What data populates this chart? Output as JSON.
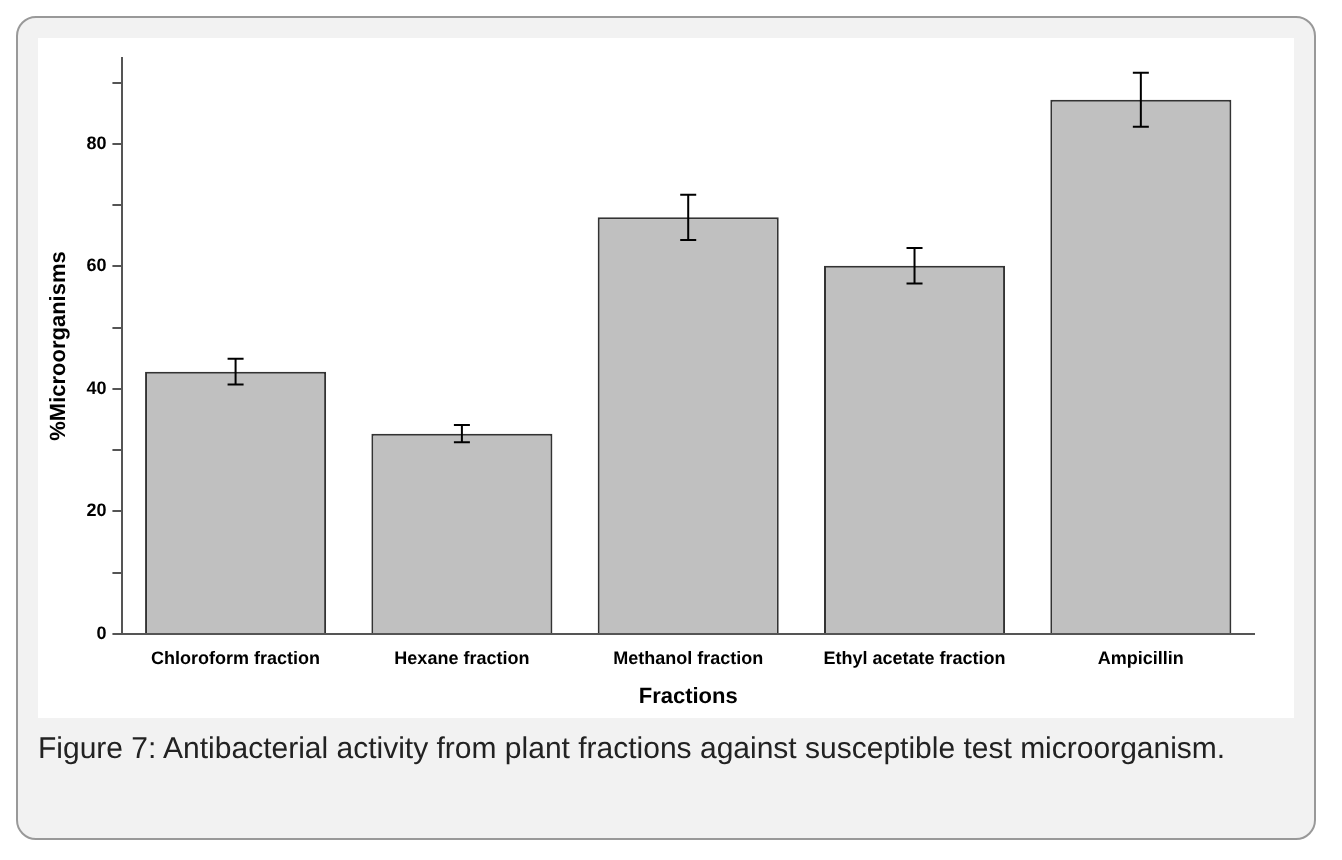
{
  "chart_data": {
    "type": "bar",
    "xlabel": "Fractions",
    "ylabel": "%Microorganisms",
    "categories": [
      "Chloroform fraction",
      "Hexane fraction",
      "Methanol fraction",
      "Ethyl acetate fraction",
      "Ampicillin"
    ],
    "values": [
      42.8,
      32.7,
      68.0,
      60.1,
      87.2
    ],
    "errors": [
      2.1,
      1.4,
      3.7,
      2.9,
      4.4
    ],
    "color": "#c0c0c0",
    "ylim": [
      0,
      94
    ],
    "yticks": [
      0,
      {
        "value": 10,
        "label": null
      },
      20,
      {
        "value": 30,
        "label": null
      },
      40,
      {
        "value": 50,
        "label": null
      },
      60,
      {
        "value": 70,
        "label": null
      },
      80,
      {
        "value": 90,
        "label": null
      }
    ],
    "grid": false,
    "legend": false,
    "annotations": [
      "Figure 7: Antibacterial activity from plant fractions against susceptible test microorganism."
    ]
  }
}
